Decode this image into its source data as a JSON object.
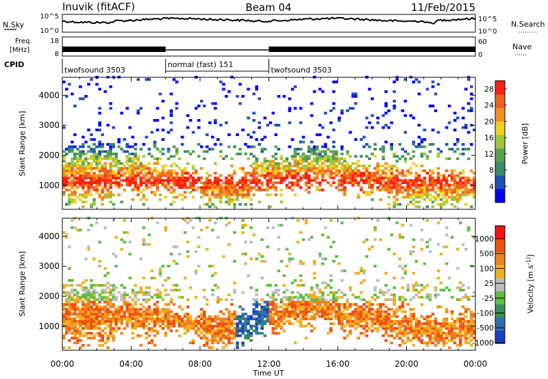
{
  "header": {
    "station": "Inuvik (fitACF)",
    "beam": "Beam 04",
    "date": "11/Feb/2015"
  },
  "top_strip": {
    "nsky_label": "N.Sky",
    "nsearch_label": "N.Search",
    "left_ticks": [
      "10^5",
      "10^0"
    ],
    "right_ticks": [
      "10^5",
      "10^0"
    ]
  },
  "freq_strip": {
    "freq_label_1": "Freq.",
    "freq_label_2": "[MHz]",
    "nave_label": "Nave",
    "left_ticks": [
      "18",
      "8"
    ],
    "right_ticks": [
      "60",
      "0"
    ]
  },
  "cpid": {
    "label": "CPID",
    "segments": [
      {
        "name": "twofsound 3503",
        "start_hour": 0,
        "end_hour": 6
      },
      {
        "name": "normal (fast) 151",
        "start_hour": 6,
        "end_hour": 12
      },
      {
        "name": "twofsound 3503",
        "start_hour": 12,
        "end_hour": 24
      }
    ]
  },
  "x_axis": {
    "label": "Time UT",
    "ticks": [
      "00:00",
      "04:00",
      "08:00",
      "12:00",
      "16:00",
      "20:00",
      "00:00"
    ],
    "range_hours": [
      0,
      24
    ]
  },
  "chart_data": [
    {
      "type": "heatmap",
      "title": "",
      "ylabel": "Slant Range [km]",
      "yticks": [
        "1000",
        "2000",
        "3000",
        "4000"
      ],
      "ylim": [
        200,
        4600
      ],
      "colorbar": {
        "label": "Power [dB]",
        "ticks": [
          "4",
          "8",
          "12",
          "16",
          "20",
          "24",
          "28"
        ],
        "range": [
          0,
          30
        ],
        "colors": [
          "#0000ff",
          "#1f4fb8",
          "#3b8a6a",
          "#5aa050",
          "#9cc83c",
          "#f0d020",
          "#f09020",
          "#f06020",
          "#ff2010"
        ]
      }
    },
    {
      "type": "heatmap",
      "title": "",
      "ylabel": "Slant Range [km]",
      "yticks": [
        "1000",
        "2000",
        "3000",
        "4000"
      ],
      "ylim": [
        200,
        4600
      ],
      "colorbar": {
        "label": "Velocity [m s^-1]",
        "ticks": [
          "1000",
          "500",
          "100",
          "25",
          "-25",
          "-100",
          "-500",
          "-1000"
        ],
        "range": [
          -1200,
          1200
        ],
        "colors": [
          "#1a40c8",
          "#2f6fb0",
          "#3a9050",
          "#5cc040",
          "#bdbdbd",
          "#f0b020",
          "#f08020",
          "#f05010",
          "#ff1010"
        ]
      }
    }
  ]
}
